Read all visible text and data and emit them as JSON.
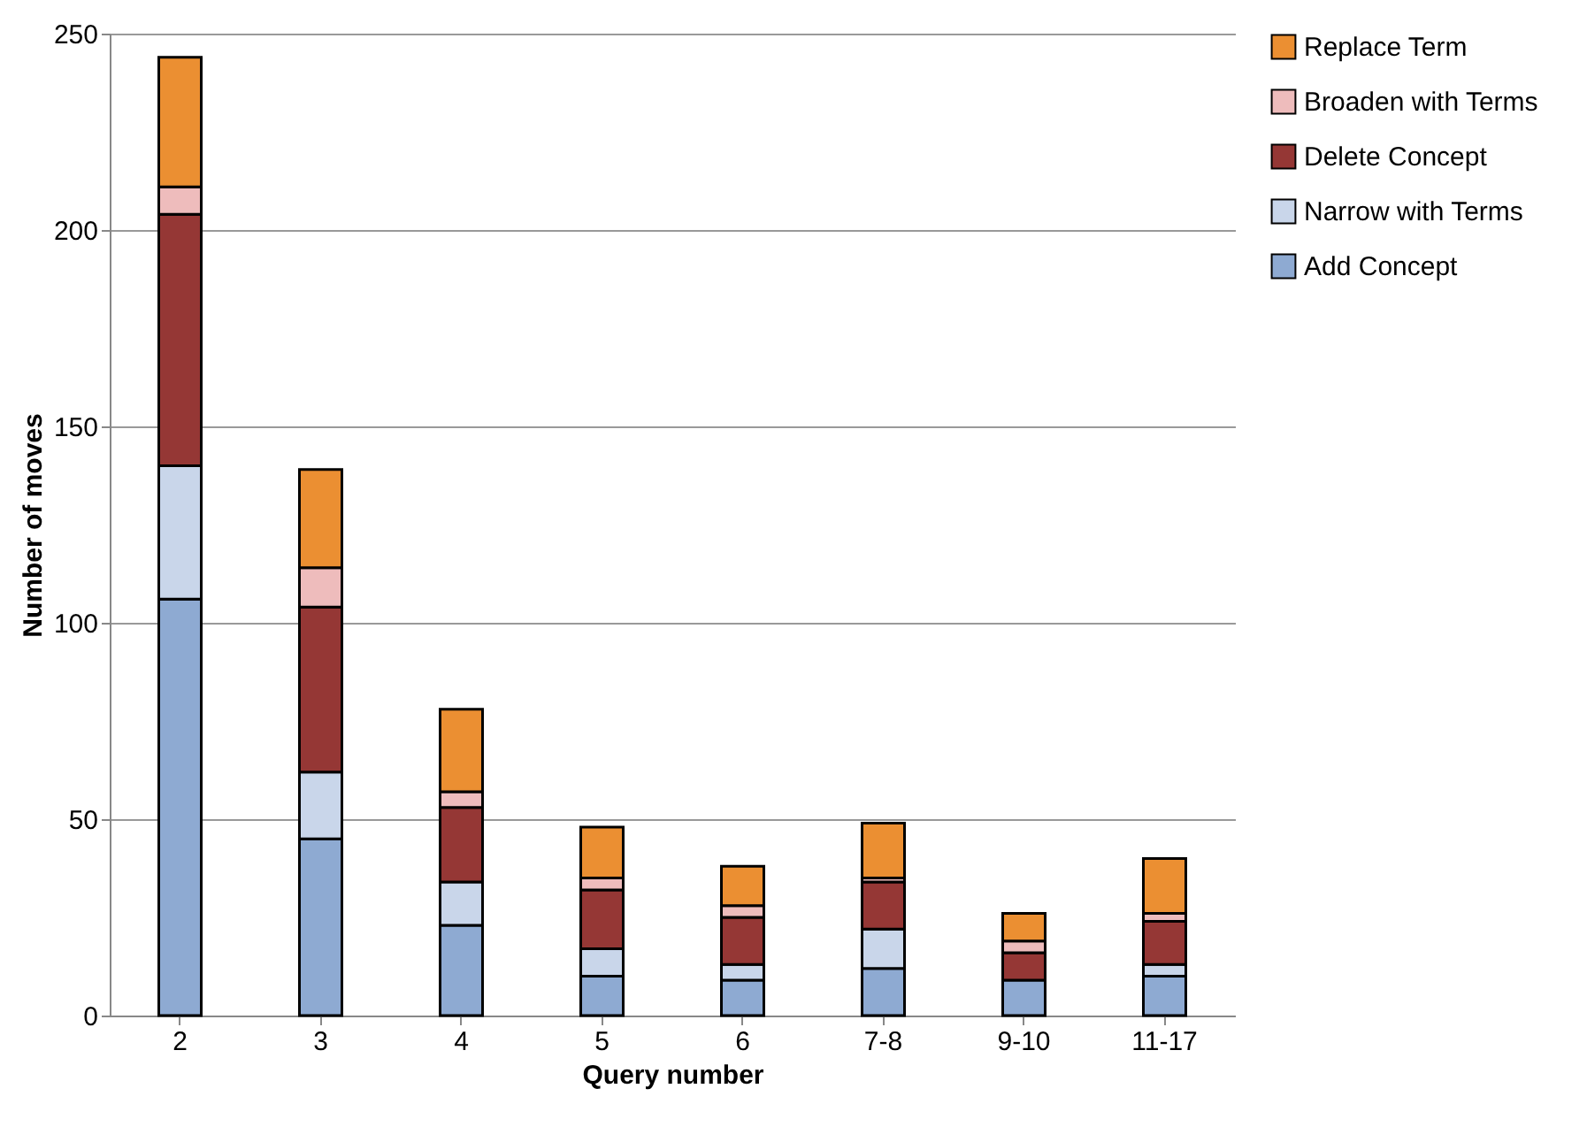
{
  "chart_data": {
    "type": "bar",
    "stacked": true,
    "xlabel": "Query number",
    "ylabel": "Number of moves",
    "categories": [
      "2",
      "3",
      "4",
      "5",
      "6",
      "7-8",
      "9-10",
      "11-17"
    ],
    "series": [
      {
        "name": "Add Concept",
        "color": "#8eaad2",
        "values": [
          106,
          45,
          23,
          10,
          9,
          12,
          9,
          10
        ]
      },
      {
        "name": "Narrow with Terms",
        "color": "#c9d6ea",
        "values": [
          34,
          17,
          11,
          7,
          4,
          10,
          null,
          3
        ]
      },
      {
        "name": "Delete Concept",
        "color": "#953735",
        "values": [
          64,
          42,
          19,
          15,
          12,
          12,
          7,
          11
        ]
      },
      {
        "name": "Broaden with Terms",
        "color": "#eebcbc",
        "values": [
          7,
          10,
          4,
          3,
          3,
          1,
          3,
          2
        ]
      },
      {
        "name": "Replace Term",
        "color": "#eb8f32",
        "values": [
          33,
          25,
          21,
          13,
          10,
          14,
          7,
          14
        ]
      }
    ],
    "ylim": [
      0,
      250
    ],
    "yticks": [
      0,
      50,
      100,
      150,
      200,
      250
    ],
    "grid": "y",
    "legend": "right"
  }
}
